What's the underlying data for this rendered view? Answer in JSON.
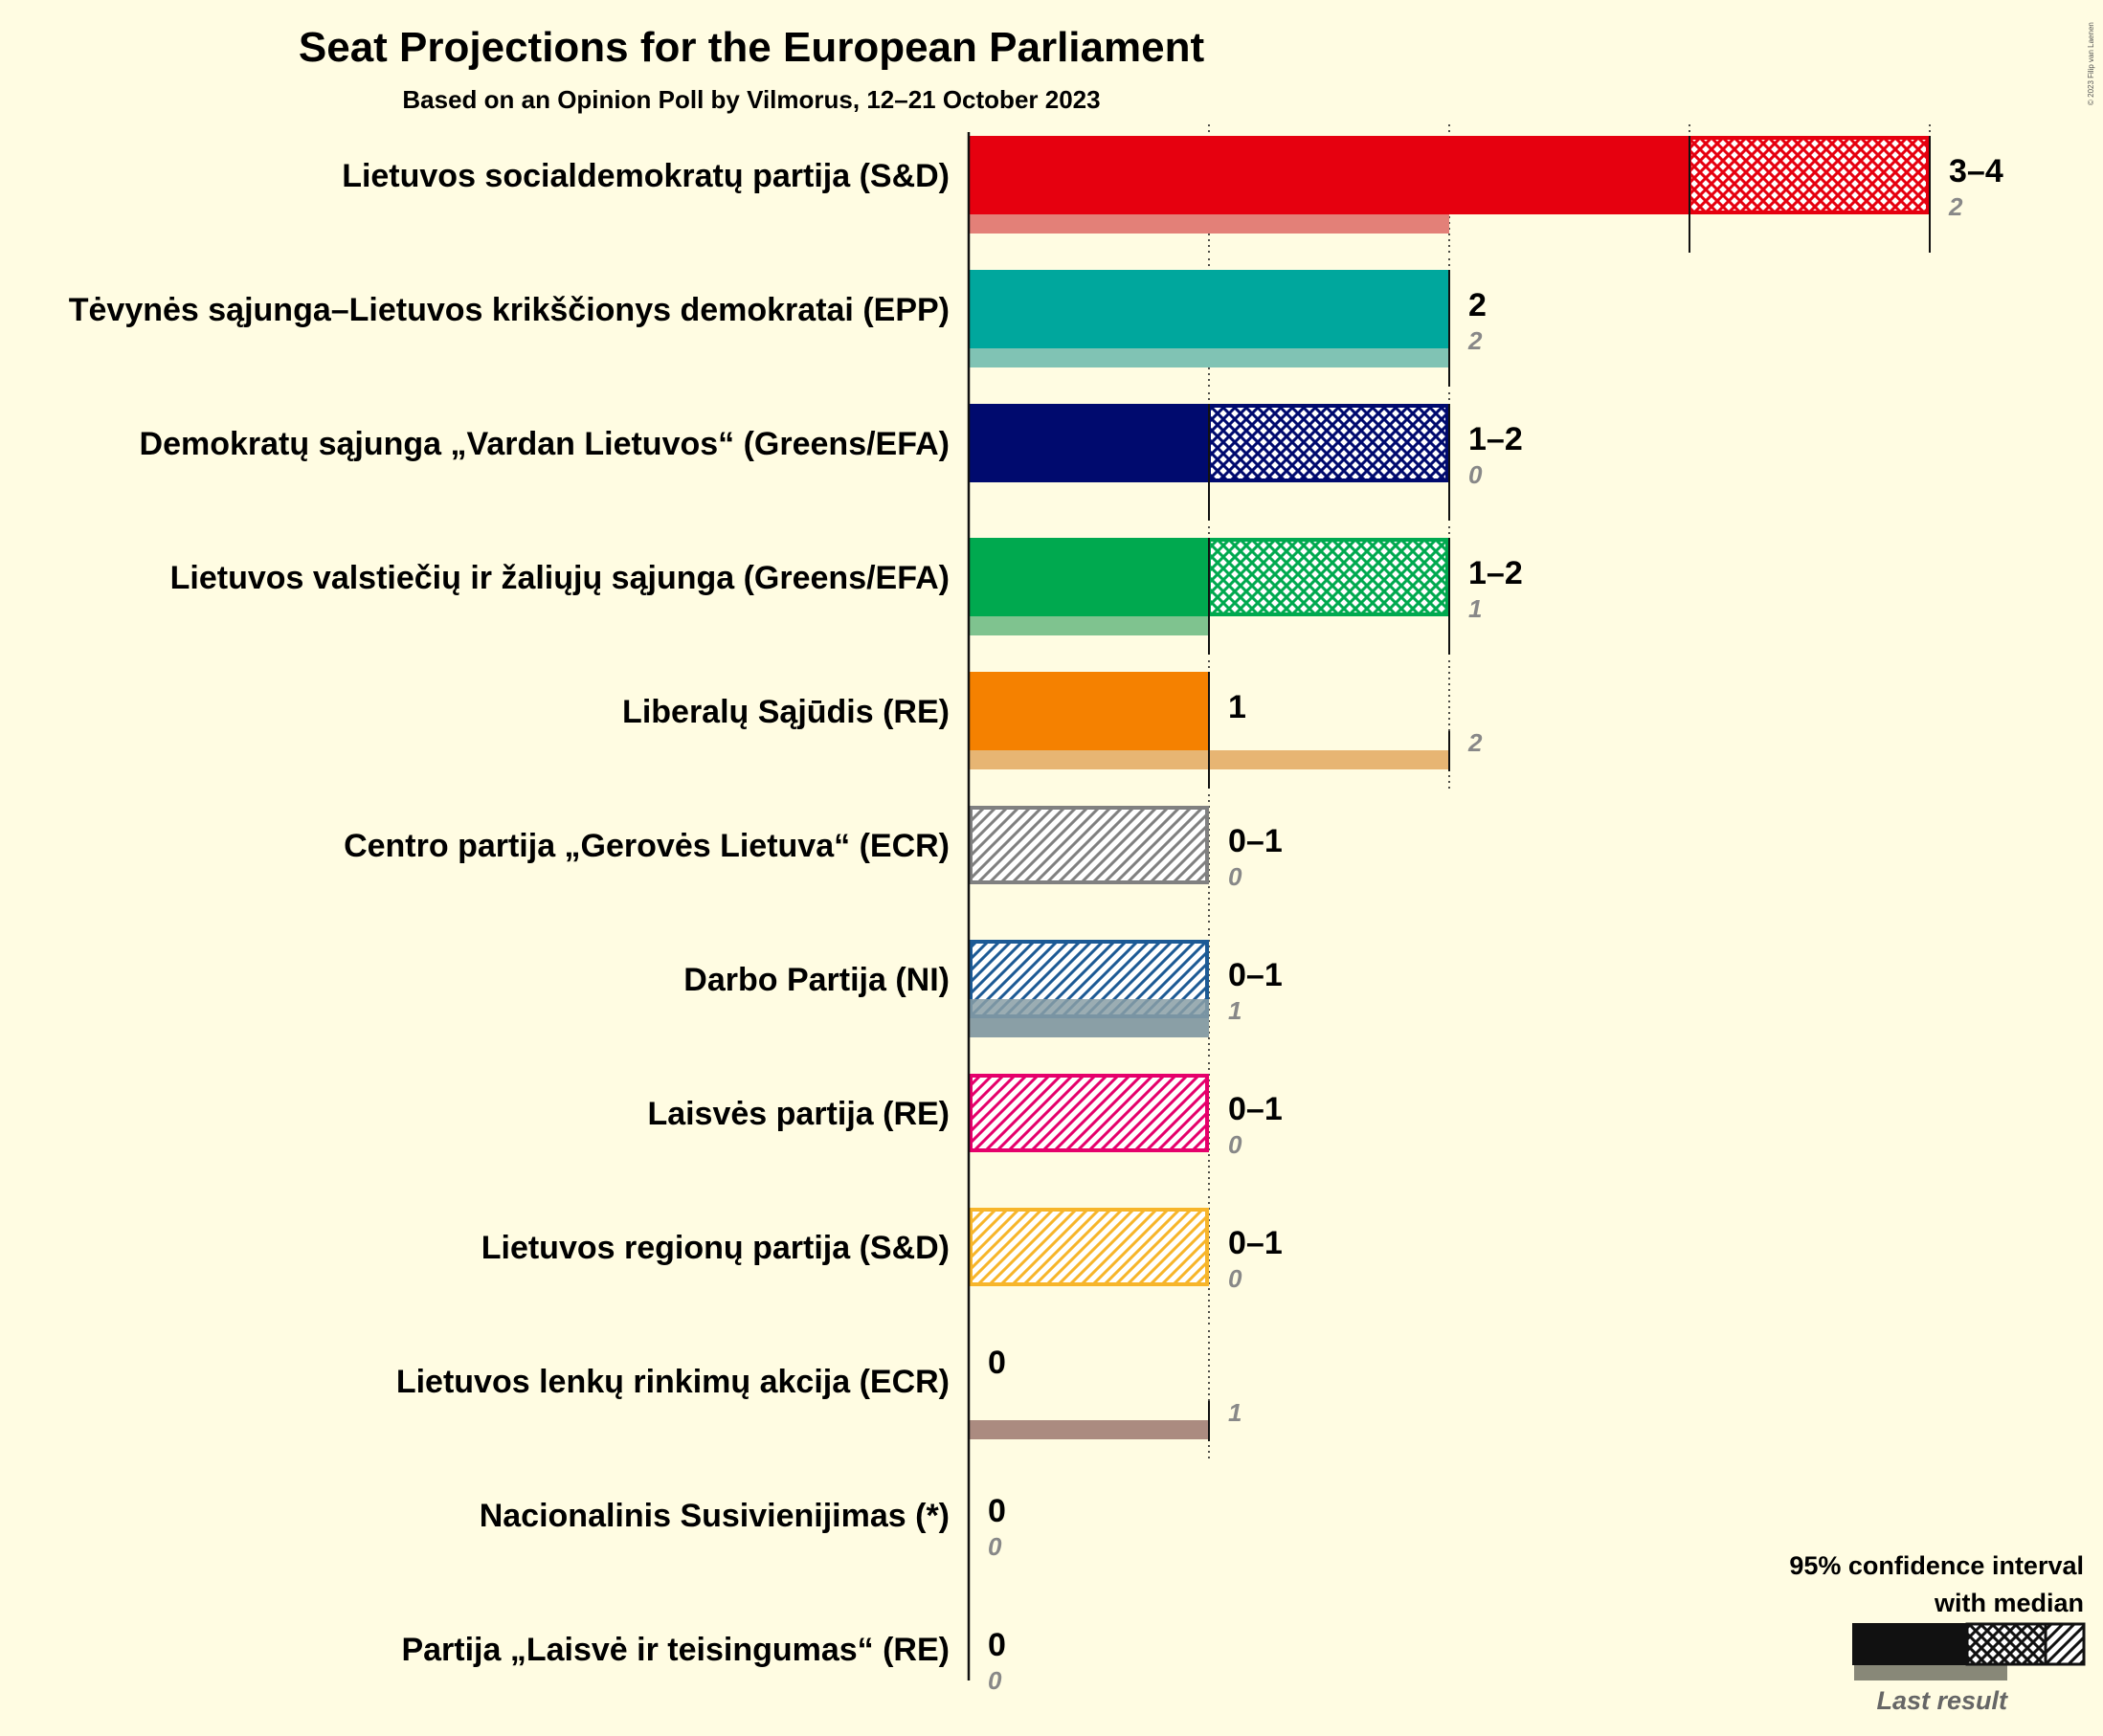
{
  "chart_data": {
    "type": "bar",
    "title": "Seat Projections for the European Parliament",
    "subtitle": "Based on an Opinion Poll by Vilmorus, 12–21 October 2023",
    "copyright": "© 2023 Filip van Laenen",
    "legend": {
      "line1": "95% confidence interval",
      "line2": "with median",
      "last_result": "Last result",
      "placement": "bottom-right"
    },
    "parties": [
      {
        "name": "Lietuvos socialdemokratų partija (S&D)",
        "color": "#E6000F",
        "last_color": "#E38078",
        "solid": 3,
        "ci_high": 4,
        "median": 3,
        "range": "3–4",
        "last": 2
      },
      {
        "name": "Tėvynės sąjunga–Lietuvos krikščionys demokratai (EPP)",
        "color": "#00A79D",
        "last_color": "#80C3B4",
        "solid": 2,
        "ci_high": 2,
        "median": 2,
        "range": "2",
        "last": 2
      },
      {
        "name": "Demokratų sąjunga „Vardan Lietuvos“ (Greens/EFA)",
        "color": "#000A6E",
        "last_color": "#7F82B4",
        "solid": 1,
        "ci_high": 2,
        "median": 1,
        "range": "1–2",
        "last": 0
      },
      {
        "name": "Lietuvos valstiečių ir žaliųjų sąjunga (Greens/EFA)",
        "color": "#00A94F",
        "last_color": "#7FC38F",
        "solid": 1,
        "ci_high": 2,
        "median": 1,
        "range": "1–2",
        "last": 1
      },
      {
        "name": "Liberalų Sąjūdis (RE)",
        "color": "#F58100",
        "last_color": "#E7B573",
        "solid": 1,
        "ci_high": 1,
        "median": 1,
        "range": "1",
        "last": 2
      },
      {
        "name": "Centro partija „Gerovės Lietuva“ (ECR)",
        "color": "#808080",
        "last_color": "#BBBBBB",
        "solid": 0,
        "ci_high": 1,
        "median": 0,
        "range": "0–1",
        "last": 0
      },
      {
        "name": "Darbo Partija (NI)",
        "color": "#1D5A95",
        "last_color": "#8A9FA6",
        "solid": 0,
        "ci_high": 1,
        "median": 0,
        "range": "0–1",
        "last": 1
      },
      {
        "name": "Laisvės partija (RE)",
        "color": "#E5006B",
        "last_color": "#EE8AAF",
        "solid": 0,
        "ci_high": 1,
        "median": 0,
        "range": "0–1",
        "last": 0
      },
      {
        "name": "Lietuvos regionų partija (S&D)",
        "color": "#F7B52A",
        "last_color": "#F5D48D",
        "solid": 0,
        "ci_high": 1,
        "median": 0,
        "range": "0–1",
        "last": 0
      },
      {
        "name": "Lietuvos lenkų rinkimų akcija (ECR)",
        "color": "#9B1B30",
        "last_color": "#AB8B80",
        "solid": 0,
        "ci_high": 0,
        "median": 0,
        "range": "0",
        "last": 1
      },
      {
        "name": "Nacionalinis Susivienijimas (*)",
        "color": "#555555",
        "last_color": "#999999",
        "solid": 0,
        "ci_high": 0,
        "median": 0,
        "range": "0",
        "last": 0
      },
      {
        "name": "Partija „Laisvė ir teisingumas“ (RE)",
        "color": "#555555",
        "last_color": "#999999",
        "solid": 0,
        "ci_high": 0,
        "median": 0,
        "range": "0",
        "last": 0
      }
    ]
  }
}
